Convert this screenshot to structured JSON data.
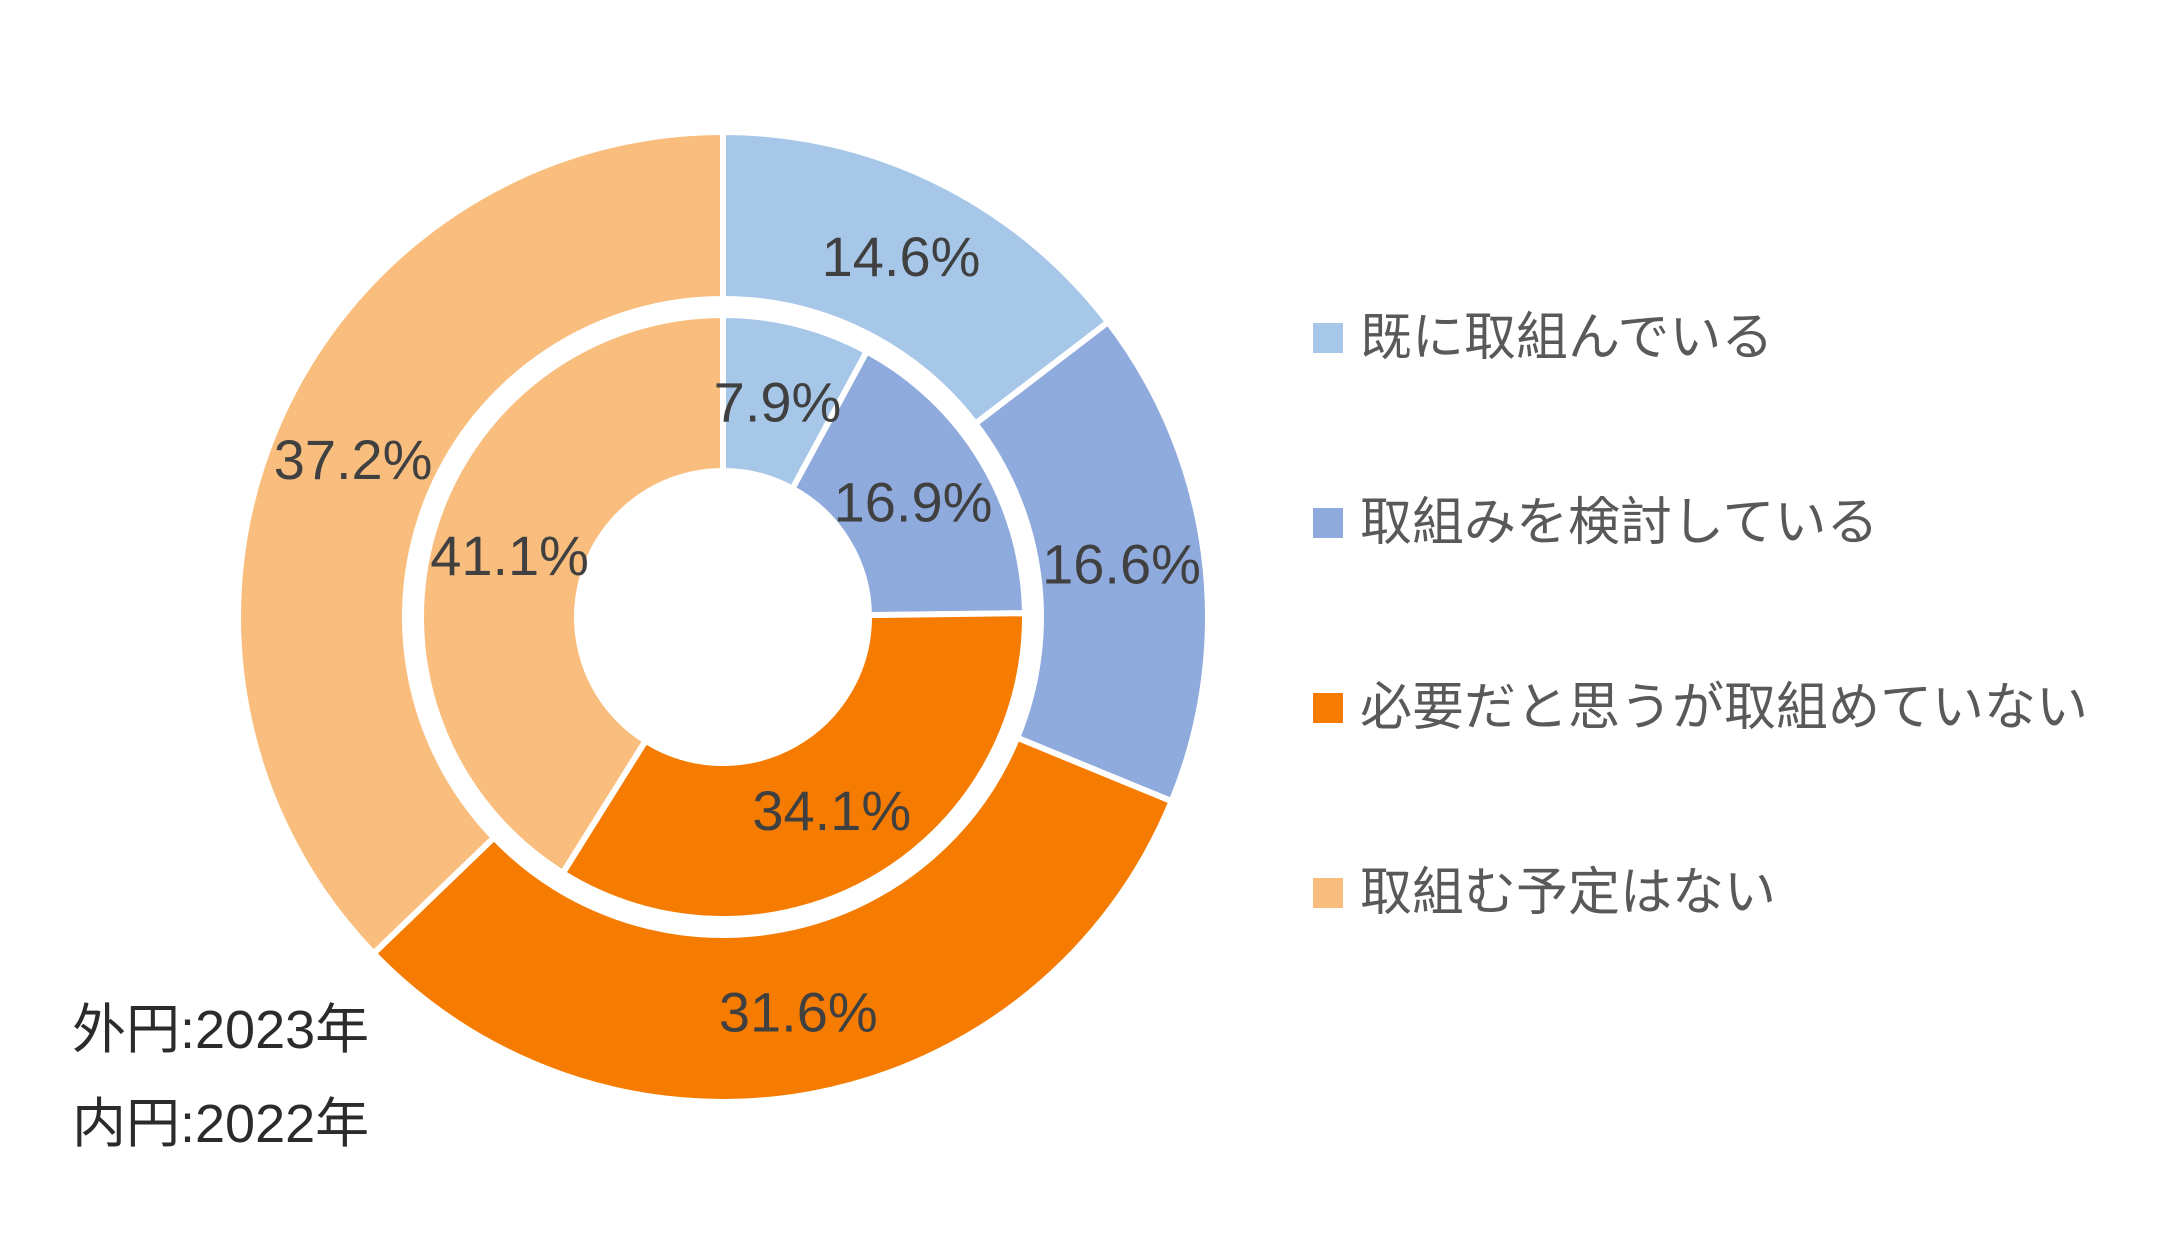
{
  "chart_data": {
    "type": "pie",
    "variant": "nested_donut_two_rings",
    "title": "",
    "categories": [
      "既に取組んでいる",
      "取組みを検討している",
      "必要だと思うが取組めていない",
      "取組む予定はない"
    ],
    "colors": [
      "#A7C7E9",
      "#8FAADC",
      "#F57C00",
      "#F9BE7E"
    ],
    "series": [
      {
        "name": "2023年",
        "ring": "outer",
        "values": [
          14.6,
          16.6,
          31.6,
          37.2
        ],
        "labels": [
          "14.6%",
          "16.6%",
          "31.6%",
          "37.2%"
        ]
      },
      {
        "name": "2022年",
        "ring": "inner",
        "values": [
          7.9,
          16.9,
          34.1,
          41.1
        ],
        "labels": [
          "7.9%",
          "16.9%",
          "34.1%",
          "41.1%"
        ]
      }
    ],
    "legend_position": "right",
    "annotations": [
      "外円:2023年",
      "内円:2022年"
    ],
    "styles": {
      "data_label_color": "#404040",
      "legend_text_color": "#595959",
      "annotation_text_color": "#2B2B2B",
      "slice_border_color": "#FFFFFF",
      "background": "#FFFFFF"
    }
  }
}
